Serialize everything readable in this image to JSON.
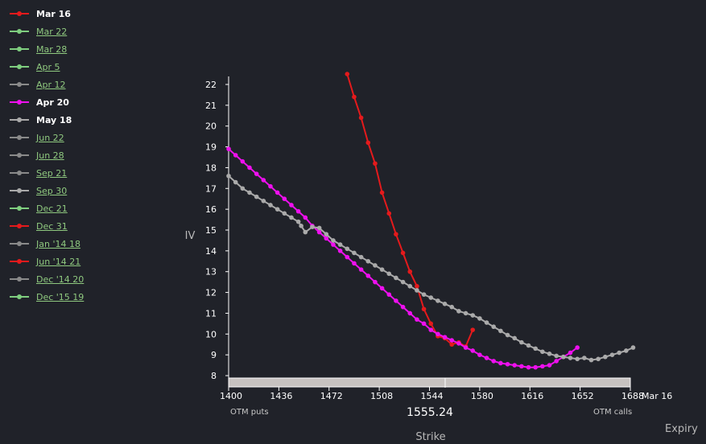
{
  "legend": [
    {
      "label": "Mar 16",
      "color": "#e41a1c",
      "active": true
    },
    {
      "label": "Mar 22",
      "color": "#7fce7f",
      "active": false
    },
    {
      "label": "Mar 28",
      "color": "#7fce7f",
      "active": false
    },
    {
      "label": "Apr 5",
      "color": "#7fce7f",
      "active": false
    },
    {
      "label": "Apr 12",
      "color": "#8a8a8a",
      "active": false
    },
    {
      "label": "Apr 20",
      "color": "#ee10ee",
      "active": true
    },
    {
      "label": "May 18",
      "color": "#aaaaaa",
      "active": true
    },
    {
      "label": "Jun 22",
      "color": "#8a8a8a",
      "active": false
    },
    {
      "label": "Jun 28",
      "color": "#8a8a8a",
      "active": false
    },
    {
      "label": "Sep 21",
      "color": "#8a8a8a",
      "active": false
    },
    {
      "label": "Sep 30",
      "color": "#aaaaaa",
      "active": false
    },
    {
      "label": "Dec 21",
      "color": "#7fce7f",
      "active": false
    },
    {
      "label": "Dec 31",
      "color": "#e41a1c",
      "active": false
    },
    {
      "label": "Jan '14 18",
      "color": "#8a8a8a",
      "active": false
    },
    {
      "label": "Jun '14 21",
      "color": "#e41a1c",
      "active": false
    },
    {
      "label": "Dec '14 20",
      "color": "#8a8a8a",
      "active": false
    },
    {
      "label": "Dec '15 19",
      "color": "#7fce7f",
      "active": false
    }
  ],
  "chart_data": {
    "type": "line",
    "ylabel": "IV",
    "xlabel": "Strike",
    "xlim": [
      1400,
      1688
    ],
    "ylim": [
      8,
      22
    ],
    "x_ticks": [
      1400,
      1436,
      1472,
      1508,
      1544,
      1580,
      1616,
      1652,
      1688
    ],
    "y_ticks": [
      8,
      9,
      10,
      11,
      12,
      13,
      14,
      15,
      16,
      17,
      18,
      19,
      20,
      21,
      22
    ],
    "spot": 1555.24,
    "spot_label": "1555.24",
    "expiry_tick_label": "Mar 16",
    "left_note": "OTM puts",
    "right_note": "OTM calls",
    "expiry_axis_label": "Expiry",
    "series": [
      {
        "name": "Mar 16",
        "color": "#e41a1c",
        "points": [
          [
            1485,
            22.5
          ],
          [
            1490,
            21.4
          ],
          [
            1495,
            20.4
          ],
          [
            1500,
            19.2
          ],
          [
            1505,
            18.2
          ],
          [
            1510,
            16.8
          ],
          [
            1515,
            15.8
          ],
          [
            1520,
            14.8
          ],
          [
            1525,
            13.9
          ],
          [
            1530,
            13.0
          ],
          [
            1535,
            12.3
          ],
          [
            1540,
            11.2
          ],
          [
            1545,
            10.5
          ],
          [
            1550,
            9.9
          ],
          [
            1555,
            9.8
          ],
          [
            1560,
            9.5
          ],
          [
            1565,
            9.6
          ],
          [
            1570,
            9.4
          ],
          [
            1575,
            10.2
          ]
        ]
      },
      {
        "name": "Apr 20",
        "color": "#ee10ee",
        "points": [
          [
            1400,
            18.9
          ],
          [
            1405,
            18.6
          ],
          [
            1410,
            18.3
          ],
          [
            1415,
            18.0
          ],
          [
            1420,
            17.7
          ],
          [
            1425,
            17.4
          ],
          [
            1430,
            17.1
          ],
          [
            1435,
            16.8
          ],
          [
            1440,
            16.5
          ],
          [
            1445,
            16.2
          ],
          [
            1450,
            15.9
          ],
          [
            1455,
            15.6
          ],
          [
            1460,
            15.2
          ],
          [
            1465,
            14.9
          ],
          [
            1470,
            14.6
          ],
          [
            1475,
            14.3
          ],
          [
            1480,
            14.0
          ],
          [
            1485,
            13.7
          ],
          [
            1490,
            13.4
          ],
          [
            1495,
            13.1
          ],
          [
            1500,
            12.8
          ],
          [
            1505,
            12.5
          ],
          [
            1510,
            12.2
          ],
          [
            1515,
            11.9
          ],
          [
            1520,
            11.6
          ],
          [
            1525,
            11.3
          ],
          [
            1530,
            11.0
          ],
          [
            1535,
            10.7
          ],
          [
            1540,
            10.5
          ],
          [
            1545,
            10.2
          ],
          [
            1550,
            10.0
          ],
          [
            1555,
            9.85
          ],
          [
            1560,
            9.7
          ],
          [
            1565,
            9.55
          ],
          [
            1570,
            9.35
          ],
          [
            1575,
            9.2
          ],
          [
            1580,
            9.0
          ],
          [
            1585,
            8.85
          ],
          [
            1590,
            8.7
          ],
          [
            1595,
            8.6
          ],
          [
            1600,
            8.55
          ],
          [
            1605,
            8.5
          ],
          [
            1610,
            8.45
          ],
          [
            1615,
            8.4
          ],
          [
            1620,
            8.4
          ],
          [
            1625,
            8.45
          ],
          [
            1630,
            8.5
          ],
          [
            1635,
            8.7
          ],
          [
            1640,
            8.9
          ],
          [
            1645,
            9.1
          ],
          [
            1650,
            9.35
          ]
        ]
      },
      {
        "name": "May 18",
        "color": "#aaaaaa",
        "points": [
          [
            1400,
            17.6
          ],
          [
            1405,
            17.3
          ],
          [
            1410,
            17.0
          ],
          [
            1415,
            16.8
          ],
          [
            1420,
            16.6
          ],
          [
            1425,
            16.4
          ],
          [
            1430,
            16.2
          ],
          [
            1435,
            16.0
          ],
          [
            1440,
            15.8
          ],
          [
            1445,
            15.6
          ],
          [
            1450,
            15.4
          ],
          [
            1452,
            15.2
          ],
          [
            1455,
            14.9
          ],
          [
            1460,
            15.15
          ],
          [
            1465,
            15.1
          ],
          [
            1470,
            14.8
          ],
          [
            1475,
            14.5
          ],
          [
            1480,
            14.3
          ],
          [
            1485,
            14.1
          ],
          [
            1490,
            13.9
          ],
          [
            1495,
            13.7
          ],
          [
            1500,
            13.5
          ],
          [
            1505,
            13.3
          ],
          [
            1510,
            13.1
          ],
          [
            1515,
            12.9
          ],
          [
            1520,
            12.7
          ],
          [
            1525,
            12.5
          ],
          [
            1530,
            12.3
          ],
          [
            1535,
            12.1
          ],
          [
            1540,
            11.9
          ],
          [
            1545,
            11.75
          ],
          [
            1550,
            11.6
          ],
          [
            1555,
            11.45
          ],
          [
            1560,
            11.3
          ],
          [
            1565,
            11.1
          ],
          [
            1570,
            11.0
          ],
          [
            1575,
            10.9
          ],
          [
            1580,
            10.75
          ],
          [
            1585,
            10.55
          ],
          [
            1590,
            10.35
          ],
          [
            1595,
            10.15
          ],
          [
            1600,
            9.95
          ],
          [
            1605,
            9.8
          ],
          [
            1610,
            9.6
          ],
          [
            1615,
            9.45
          ],
          [
            1620,
            9.3
          ],
          [
            1625,
            9.15
          ],
          [
            1630,
            9.05
          ],
          [
            1635,
            8.95
          ],
          [
            1640,
            8.9
          ],
          [
            1645,
            8.85
          ],
          [
            1650,
            8.8
          ],
          [
            1655,
            8.85
          ],
          [
            1660,
            8.75
          ],
          [
            1665,
            8.8
          ],
          [
            1670,
            8.9
          ],
          [
            1675,
            9.0
          ],
          [
            1680,
            9.1
          ],
          [
            1685,
            9.2
          ],
          [
            1690,
            9.35
          ]
        ]
      }
    ]
  }
}
